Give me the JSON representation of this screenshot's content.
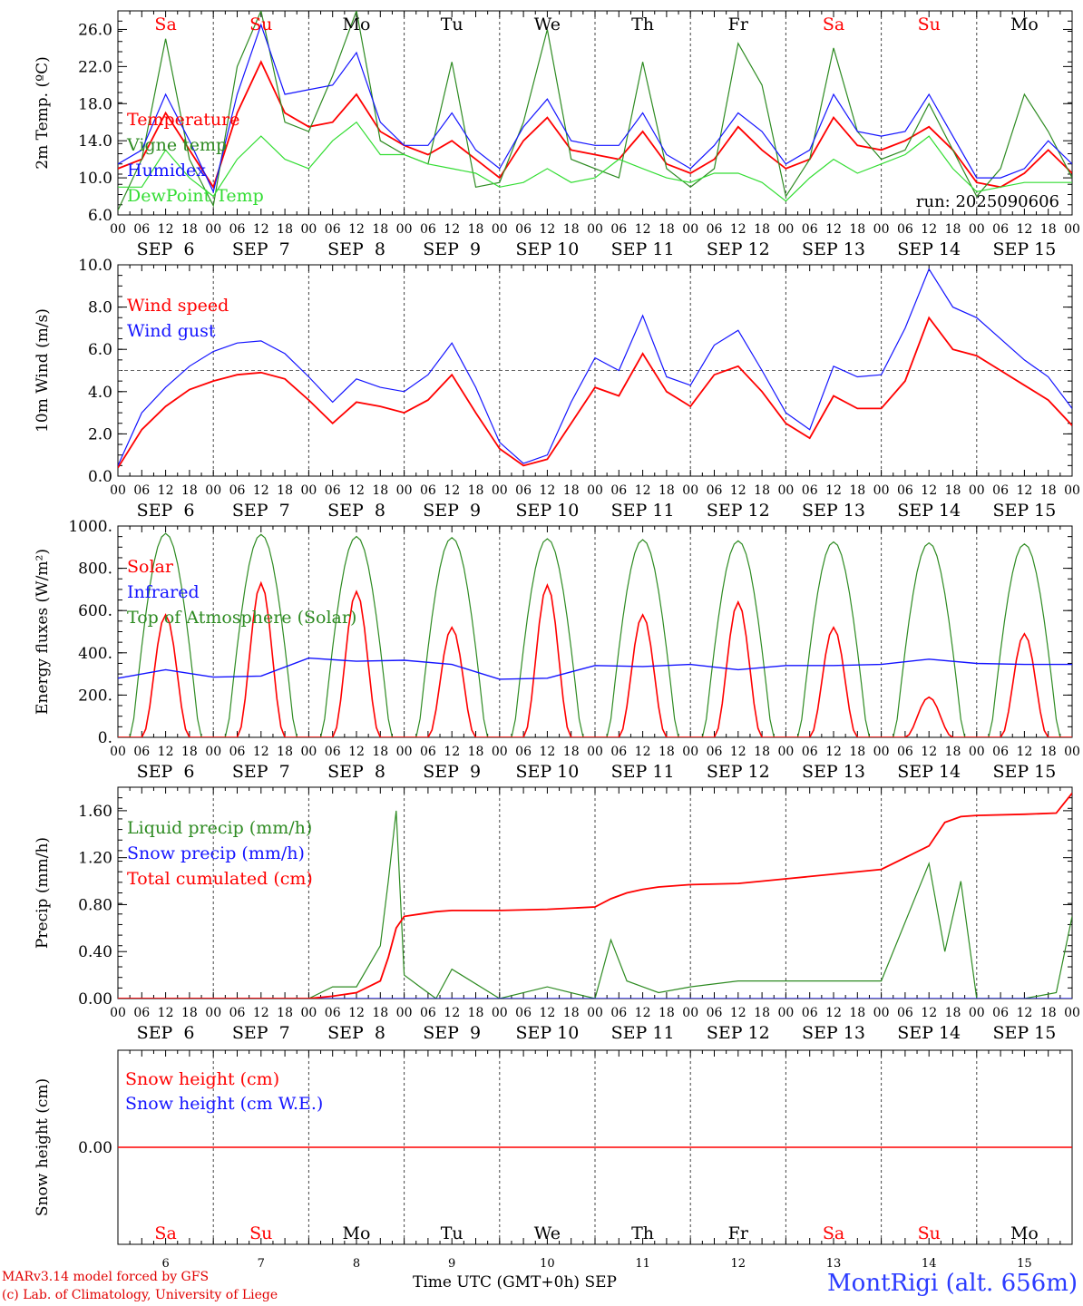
{
  "run_label": "run: 2025090606",
  "footer": {
    "model": "MARv3.14 model forced by GFS",
    "credit": "(c) Lab. of Climatology, University of Liege",
    "station": "MontRigi (alt. 656m)",
    "xlabel": "Time UTC (GMT+0h) SEP"
  },
  "days": [
    "Sa",
    "Su",
    "Mo",
    "Tu",
    "We",
    "Th",
    "Fr",
    "Sa",
    "Su",
    "Mo"
  ],
  "day_numbers": [
    "6",
    "7",
    "8",
    "9",
    "10",
    "11",
    "12",
    "13",
    "14",
    "15"
  ],
  "date_labels": [
    "SEP  6",
    "SEP  7",
    "SEP  8",
    "SEP  9",
    "SEP 10",
    "SEP 11",
    "SEP 12",
    "SEP 13",
    "SEP 14",
    "SEP 15"
  ],
  "hour_ticks": [
    "00",
    "06",
    "12",
    "18"
  ],
  "colors": {
    "red": "#ff0000",
    "green": "#2e8b22",
    "blue": "#1414ff",
    "lightgreen": "#33dd33",
    "weekend": "#ff0000",
    "weekday": "#000000"
  },
  "chart_data": [
    {
      "type": "line",
      "ylabel": "2m Temp. (ºC)",
      "ylim": [
        6,
        28
      ],
      "yticks": [
        "6.0",
        "10.0",
        "14.0",
        "18.0",
        "22.0",
        "26.0"
      ],
      "x_hours": [
        0,
        6,
        12,
        18,
        24,
        30,
        36,
        42,
        48,
        54,
        60,
        66,
        72,
        78,
        84,
        90,
        96,
        102,
        108,
        114,
        120,
        126,
        132,
        138,
        144,
        150,
        156,
        162,
        168,
        174,
        180,
        186,
        192,
        198,
        204,
        210,
        216,
        222,
        228,
        234,
        240
      ],
      "series": [
        {
          "name": "Temperature",
          "color": "red",
          "values": [
            11,
            12,
            17,
            13,
            9,
            17,
            22.5,
            17,
            15.5,
            16,
            19,
            15,
            13.5,
            12.5,
            14,
            12,
            10,
            14,
            16.5,
            13,
            12.5,
            12,
            15,
            11.5,
            10.5,
            12,
            15.5,
            13,
            11,
            12,
            16.5,
            13.5,
            13,
            14,
            15.5,
            13,
            9.5,
            9,
            10.5,
            13,
            10.5
          ]
        },
        {
          "name": "Vigne temp",
          "color": "green",
          "values": [
            6.5,
            12,
            25,
            12,
            7,
            22,
            28,
            16,
            15,
            21,
            28,
            14,
            12.5,
            11.5,
            22.5,
            9,
            9.5,
            16,
            26,
            12,
            11,
            10,
            22.5,
            11,
            9,
            11,
            24.5,
            20,
            8,
            12,
            24,
            15,
            12,
            13,
            18,
            13,
            8,
            11,
            19,
            15,
            10
          ]
        },
        {
          "name": "Humidex",
          "color": "blue",
          "values": [
            11.5,
            13,
            19,
            14,
            8.5,
            19,
            26.5,
            19,
            19.5,
            20,
            23.5,
            16,
            13.5,
            13.5,
            17,
            13,
            11,
            15.5,
            18.5,
            14,
            13.5,
            13.5,
            17,
            12.5,
            11,
            13.5,
            17,
            15,
            11.5,
            13,
            19,
            15,
            14.5,
            15,
            19,
            14.5,
            10,
            10,
            11,
            14,
            11.5
          ]
        },
        {
          "name": "DewPoint Temp",
          "color": "lightgreen",
          "values": [
            9,
            9,
            13,
            10,
            8,
            12,
            14.5,
            12,
            11,
            14,
            16,
            12.5,
            12.5,
            11.5,
            11,
            10.5,
            9,
            9.5,
            11,
            9.5,
            10,
            12,
            11,
            10,
            9.5,
            10.5,
            10.5,
            9.5,
            7.5,
            10,
            12,
            10.5,
            11.5,
            12.5,
            14.5,
            11,
            8.5,
            9,
            9.5,
            9.5,
            9.5
          ]
        }
      ]
    },
    {
      "type": "line",
      "ylabel": "10m Wind (m/s)",
      "ylim": [
        0,
        10
      ],
      "yticks": [
        "0.0",
        "2.0",
        "4.0",
        "6.0",
        "8.0",
        "10.0"
      ],
      "ref_line": 5,
      "x_hours": [
        0,
        6,
        12,
        18,
        24,
        30,
        36,
        42,
        48,
        54,
        60,
        66,
        72,
        78,
        84,
        90,
        96,
        102,
        108,
        114,
        120,
        126,
        132,
        138,
        144,
        150,
        156,
        162,
        168,
        174,
        180,
        186,
        192,
        198,
        204,
        210,
        216,
        222,
        228,
        234,
        240
      ],
      "series": [
        {
          "name": "Wind speed",
          "color": "red",
          "values": [
            0.4,
            2.2,
            3.3,
            4.1,
            4.5,
            4.8,
            4.9,
            4.6,
            3.6,
            2.5,
            3.5,
            3.3,
            3,
            3.6,
            4.8,
            3,
            1.3,
            0.5,
            0.8,
            2.5,
            4.2,
            3.8,
            5.8,
            4,
            3.3,
            4.8,
            5.2,
            4,
            2.5,
            1.8,
            3.8,
            3.2,
            3.2,
            4.5,
            7.5,
            6,
            5.7,
            5,
            4.3,
            3.6,
            2.4
          ]
        },
        {
          "name": "Wind gust",
          "color": "blue",
          "values": [
            0.5,
            3,
            4.2,
            5.2,
            5.9,
            6.3,
            6.4,
            5.8,
            4.7,
            3.5,
            4.6,
            4.2,
            4,
            4.8,
            6.3,
            4.2,
            1.6,
            0.6,
            1,
            3.5,
            5.6,
            5,
            7.6,
            4.7,
            4.3,
            6.2,
            6.9,
            5,
            3,
            2.2,
            5.2,
            4.7,
            4.8,
            7,
            9.8,
            8,
            7.5,
            6.5,
            5.5,
            4.7,
            3.2
          ]
        }
      ]
    },
    {
      "type": "line",
      "ylabel": "Energy fluxes (W/m²)",
      "ylim": [
        0,
        1000
      ],
      "yticks": [
        "0.",
        "200.",
        "400.",
        "600.",
        "800.",
        "1000."
      ],
      "day_peaks": {
        "toa": [
          965,
          960,
          950,
          945,
          940,
          935,
          930,
          925,
          920,
          915
        ],
        "solar": [
          580,
          730,
          690,
          520,
          720,
          580,
          640,
          520,
          190,
          490
        ]
      },
      "infrared_x_hours": [
        0,
        12,
        24,
        36,
        48,
        60,
        72,
        84,
        96,
        108,
        120,
        132,
        144,
        156,
        168,
        180,
        192,
        204,
        216,
        228,
        240
      ],
      "infrared_values": [
        280,
        320,
        285,
        290,
        375,
        360,
        365,
        345,
        275,
        280,
        340,
        335,
        345,
        320,
        340,
        340,
        345,
        370,
        350,
        345,
        345
      ],
      "series": [
        {
          "name": "Solar",
          "color": "red"
        },
        {
          "name": "Infrared",
          "color": "blue"
        },
        {
          "name": "Top of Atmosphere (Solar)",
          "color": "green"
        }
      ]
    },
    {
      "type": "line",
      "ylabel": "Precip (mm/h)",
      "ylim": [
        0,
        1.8
      ],
      "yticks": [
        "0.00",
        "0.40",
        "0.80",
        "1.20",
        "1.60"
      ],
      "x_hours": [
        0,
        24,
        48,
        54,
        60,
        66,
        68,
        70,
        72,
        76,
        80,
        84,
        96,
        108,
        120,
        124,
        128,
        132,
        136,
        144,
        156,
        168,
        192,
        204,
        208,
        212,
        216,
        228,
        236,
        240
      ],
      "series": [
        {
          "name": "Liquid precip (mm/h)",
          "color": "green",
          "values": [
            0,
            0,
            0,
            0.1,
            0.1,
            0.45,
            1.0,
            1.6,
            0.2,
            0.1,
            0,
            0.25,
            0,
            0.1,
            0,
            0.5,
            0.15,
            0.1,
            0.05,
            0.1,
            0.15,
            0.15,
            0.15,
            1.15,
            0.4,
            1.0,
            0,
            0,
            0.05,
            0.7
          ]
        },
        {
          "name": "Snow precip (mm/h)",
          "color": "blue",
          "values": [
            0,
            0,
            0,
            0,
            0,
            0,
            0,
            0,
            0,
            0,
            0,
            0,
            0,
            0,
            0,
            0,
            0,
            0,
            0,
            0,
            0,
            0,
            0,
            0,
            0,
            0,
            0,
            0,
            0,
            0
          ]
        },
        {
          "name": "Total cumulated (cm)",
          "color": "red",
          "values": [
            0,
            0,
            0,
            0.02,
            0.05,
            0.15,
            0.35,
            0.6,
            0.7,
            0.72,
            0.74,
            0.75,
            0.75,
            0.76,
            0.78,
            0.85,
            0.9,
            0.93,
            0.95,
            0.97,
            0.98,
            1.02,
            1.1,
            1.3,
            1.5,
            1.55,
            1.56,
            1.57,
            1.58,
            1.75
          ]
        }
      ]
    },
    {
      "type": "line",
      "ylabel": "Snow height (cm)",
      "yticks": [
        "0.00"
      ],
      "series": [
        {
          "name": "Snow height (cm)",
          "color": "red",
          "values": [
            0,
            0
          ]
        },
        {
          "name": "Snow height (cm W.E.)",
          "color": "blue",
          "values": [
            0,
            0
          ]
        }
      ]
    }
  ]
}
